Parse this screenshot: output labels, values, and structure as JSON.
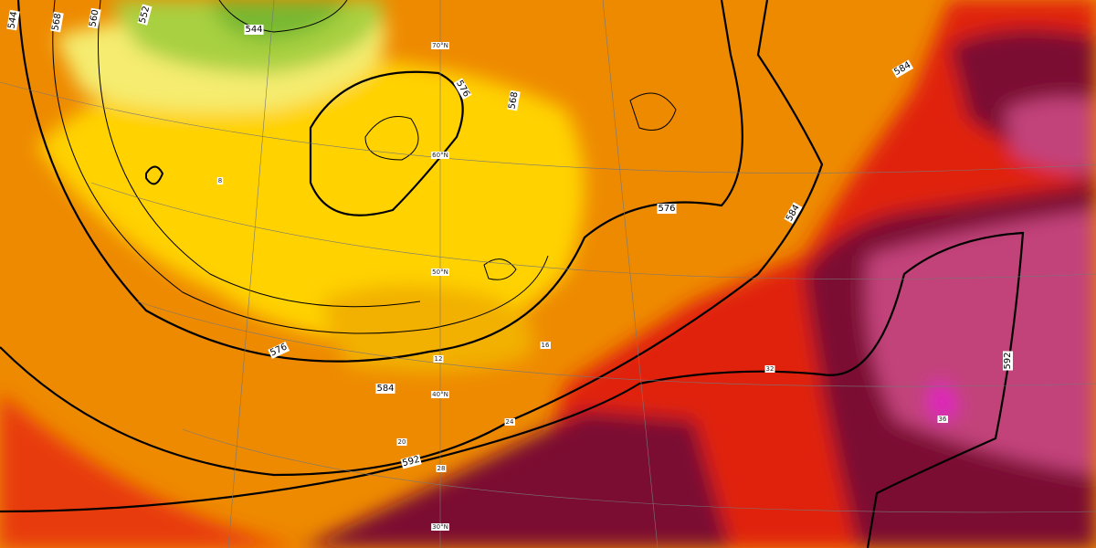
{
  "height_contours": {
    "labels": [
      544,
      544,
      552,
      560,
      568,
      576,
      568,
      576,
      584,
      584,
      576,
      584,
      592,
      592
    ]
  },
  "temperature_labels": [
    8,
    12,
    16,
    20,
    24,
    28,
    32,
    36
  ],
  "latitude_labels": [
    "70°N",
    "60°N",
    "50°N",
    "40°N",
    "30°N"
  ]
}
